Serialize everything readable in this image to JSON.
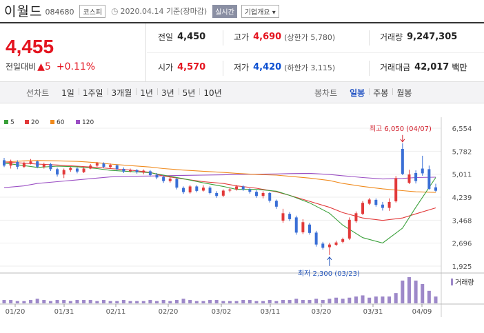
{
  "header": {
    "name": "이월드",
    "code": "084680",
    "market": "코스피",
    "date": "2020.04.14 기준(장마감)",
    "realtime": "실시간",
    "company_info": "기업개요 ▾"
  },
  "price": {
    "current": "4,455",
    "change_label": "전일대비",
    "change_value": "▲5",
    "change_pct": "+0.11%"
  },
  "stats": {
    "prev_label": "전일",
    "prev": "4,450",
    "high_label": "고가",
    "high": "4,690",
    "upper_limit": "(상한가 5,780)",
    "volume_label": "거래량",
    "volume": "9,247,305",
    "open_label": "시가",
    "open": "4,570",
    "low_label": "저가",
    "low": "4,420",
    "lower_limit": "(하한가 3,115)",
    "amount_label": "거래대금",
    "amount": "42,017",
    "amount_unit": "백만"
  },
  "tabs": {
    "line_label": "선차트",
    "line_tabs": [
      "1일",
      "1주일",
      "3개월",
      "1년",
      "3년",
      "5년",
      "10년"
    ],
    "candle_label": "봉차트",
    "candle_tabs": [
      "일봉",
      "주봉",
      "월봉"
    ],
    "active_candle": 0
  },
  "chart_data": {
    "type": "candlestick",
    "legend": [
      {
        "name": "5",
        "color": "#3aa03a"
      },
      {
        "name": "20",
        "color": "#e23a3a"
      },
      {
        "name": "60",
        "color": "#f08a1c"
      },
      {
        "name": "120",
        "color": "#9b4fc4"
      }
    ],
    "y_ticks": [
      "6,554",
      "5,782",
      "5,011",
      "4,239",
      "3,468",
      "2,696",
      "1,925"
    ],
    "x_ticks": [
      "01/20",
      "01/31",
      "02/11",
      "02/20",
      "03/02",
      "03/11",
      "03/20",
      "03/31",
      "04/09"
    ],
    "annotations": {
      "high": "최고 6,050 (04/07)",
      "low": "최저 2,300 (03/23)"
    },
    "volume_label": "거래량",
    "up_color": "#e23a3a",
    "down_color": "#3a6fd6",
    "volume_color": "#9d88c9"
  }
}
